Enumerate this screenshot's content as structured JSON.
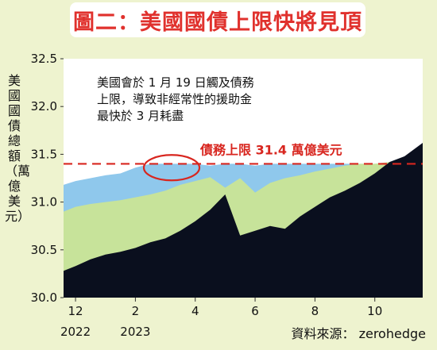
{
  "title": "圖二：美國國債上限快將見頂",
  "source": "資料來源： zerohedge",
  "annotation": [
    "美國會於 1 月 19 日觸及債務",
    "上限，導致非經常性的援助金",
    "最快於 3 月耗盡"
  ],
  "colors": {
    "title": "#e0312d",
    "debt": "#0a0f1e",
    "green_band": "#c7e39a",
    "blue_band": "#8fc8ec",
    "limit_line": "#d8261f",
    "background": "#eef3cf",
    "plot_bg": "#ffffff"
  },
  "chart_data": {
    "type": "area",
    "title": "圖二：美國國債上限快將見頂",
    "ylabel": "美國國債總額（萬億美元）",
    "ylim": [
      30.0,
      32.5
    ],
    "yticks": [
      "30.0",
      "30.5",
      "31.0",
      "31.5",
      "32.0",
      "32.5"
    ],
    "x_ticks": [
      {
        "label": "12",
        "sublabel": "2022",
        "x": 0
      },
      {
        "label": "2",
        "sublabel": "2023",
        "x": 2
      },
      {
        "label": "4",
        "sublabel": "",
        "x": 4
      },
      {
        "label": "6",
        "sublabel": "",
        "x": 6
      },
      {
        "label": "8",
        "sublabel": "",
        "x": 8
      },
      {
        "label": "10",
        "sublabel": "",
        "x": 10
      }
    ],
    "xlim": [
      -0.4,
      11.6
    ],
    "limit": {
      "value": 31.4,
      "label": "債務上限 31.4 萬億美元"
    },
    "series": [
      {
        "role": "blue",
        "x": [
          -0.4,
          0,
          0.5,
          1,
          1.5,
          2,
          2.5,
          3,
          3.5,
          4,
          4.5,
          5,
          5.5,
          6,
          6.5,
          7,
          7.5,
          8,
          8.5,
          9,
          9.5,
          10,
          10.5,
          11,
          11.6
        ],
        "values": [
          31.18,
          31.22,
          31.25,
          31.28,
          31.3,
          31.36,
          31.4,
          31.4,
          31.4,
          31.4,
          31.38,
          31.4,
          31.4,
          31.38,
          31.4,
          31.4,
          31.4,
          31.4,
          31.4,
          31.4,
          31.4,
          31.4,
          31.4,
          31.4,
          31.45
        ]
      },
      {
        "role": "green",
        "x": [
          -0.4,
          0,
          0.5,
          1,
          1.5,
          2,
          2.5,
          3,
          3.5,
          4,
          4.5,
          5,
          5.5,
          6,
          6.5,
          7,
          7.5,
          8,
          8.5,
          9,
          9.5,
          10,
          10.5,
          11,
          11.6
        ],
        "values": [
          30.9,
          30.95,
          30.98,
          31.0,
          31.02,
          31.05,
          31.08,
          31.12,
          31.18,
          31.22,
          31.26,
          31.15,
          31.25,
          31.1,
          31.2,
          31.25,
          31.28,
          31.32,
          31.35,
          31.38,
          31.4,
          31.4,
          31.42,
          31.45,
          31.55
        ]
      },
      {
        "role": "debt",
        "x": [
          -0.4,
          0,
          0.5,
          1,
          1.5,
          2,
          2.5,
          3,
          3.5,
          4,
          4.5,
          5,
          5.5,
          6,
          6.5,
          7,
          7.5,
          8,
          8.5,
          9,
          9.5,
          10,
          10.5,
          11,
          11.6
        ],
        "values": [
          30.28,
          30.33,
          30.4,
          30.45,
          30.48,
          30.52,
          30.58,
          30.62,
          30.7,
          30.8,
          30.92,
          31.08,
          30.65,
          30.7,
          30.75,
          30.72,
          30.85,
          30.95,
          31.05,
          31.12,
          31.2,
          31.3,
          31.42,
          31.48,
          31.62
        ]
      }
    ]
  }
}
